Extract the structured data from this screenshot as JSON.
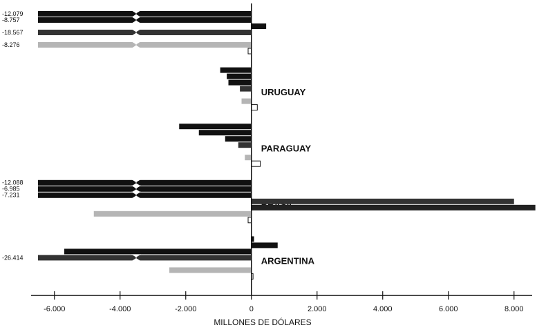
{
  "chart_data": {
    "type": "bar",
    "orientation": "horizontal",
    "xlabel": "MILLONES DE DÓLARES",
    "categories": [
      null,
      "URUGUAY",
      "PARAGUAY",
      "BRASIL",
      "ARGENTINA"
    ],
    "series": [
      {
        "color": "#111111",
        "values": [
          -12079,
          -950,
          -2200,
          -12088,
          80
        ],
        "value_labels": [
          "-12.079",
          null,
          null,
          "-12.088",
          null
        ]
      },
      {
        "color": "#111111",
        "values": [
          -8757,
          -750,
          -1600,
          -6985,
          800
        ],
        "value_labels": [
          "-8.757",
          null,
          null,
          "-6.985",
          null
        ]
      },
      {
        "color": "#111111",
        "values": [
          450,
          -700,
          -800,
          -7231,
          -5700
        ],
        "value_labels": [
          null,
          null,
          null,
          "-7.231",
          null
        ]
      },
      {
        "color": "#333333",
        "values": [
          -18567,
          -350,
          -400,
          8000,
          -26414
        ],
        "value_labels": [
          "-18.567",
          null,
          null,
          null,
          "-26.414"
        ]
      },
      {
        "color": "#222222",
        "values": [
          null,
          null,
          null,
          8650,
          null
        ],
        "value_labels": [
          null,
          null,
          null,
          null,
          null
        ]
      },
      {
        "color": "#b5b5b5",
        "values": [
          -8276,
          -300,
          -200,
          -4800,
          -2500
        ],
        "value_labels": [
          "-8.276",
          null,
          null,
          null,
          null
        ]
      },
      {
        "color": "#ffffff",
        "values": [
          -100,
          180,
          270,
          -100,
          50
        ],
        "value_labels": [
          null,
          null,
          null,
          null,
          null
        ]
      }
    ],
    "xlim": [
      -6500,
      8700
    ],
    "xticks": [
      {
        "value": -6000,
        "label": "-6.000"
      },
      {
        "value": -4000,
        "label": "-4.000"
      },
      {
        "value": -2000,
        "label": "-2.000"
      },
      0,
      {
        "value": 2000,
        "label": "2.000"
      },
      {
        "value": 4000,
        "label": "4.000"
      },
      {
        "value": 6000,
        "label": "6.000"
      },
      {
        "value": 8000,
        "label": "8.000"
      }
    ]
  }
}
